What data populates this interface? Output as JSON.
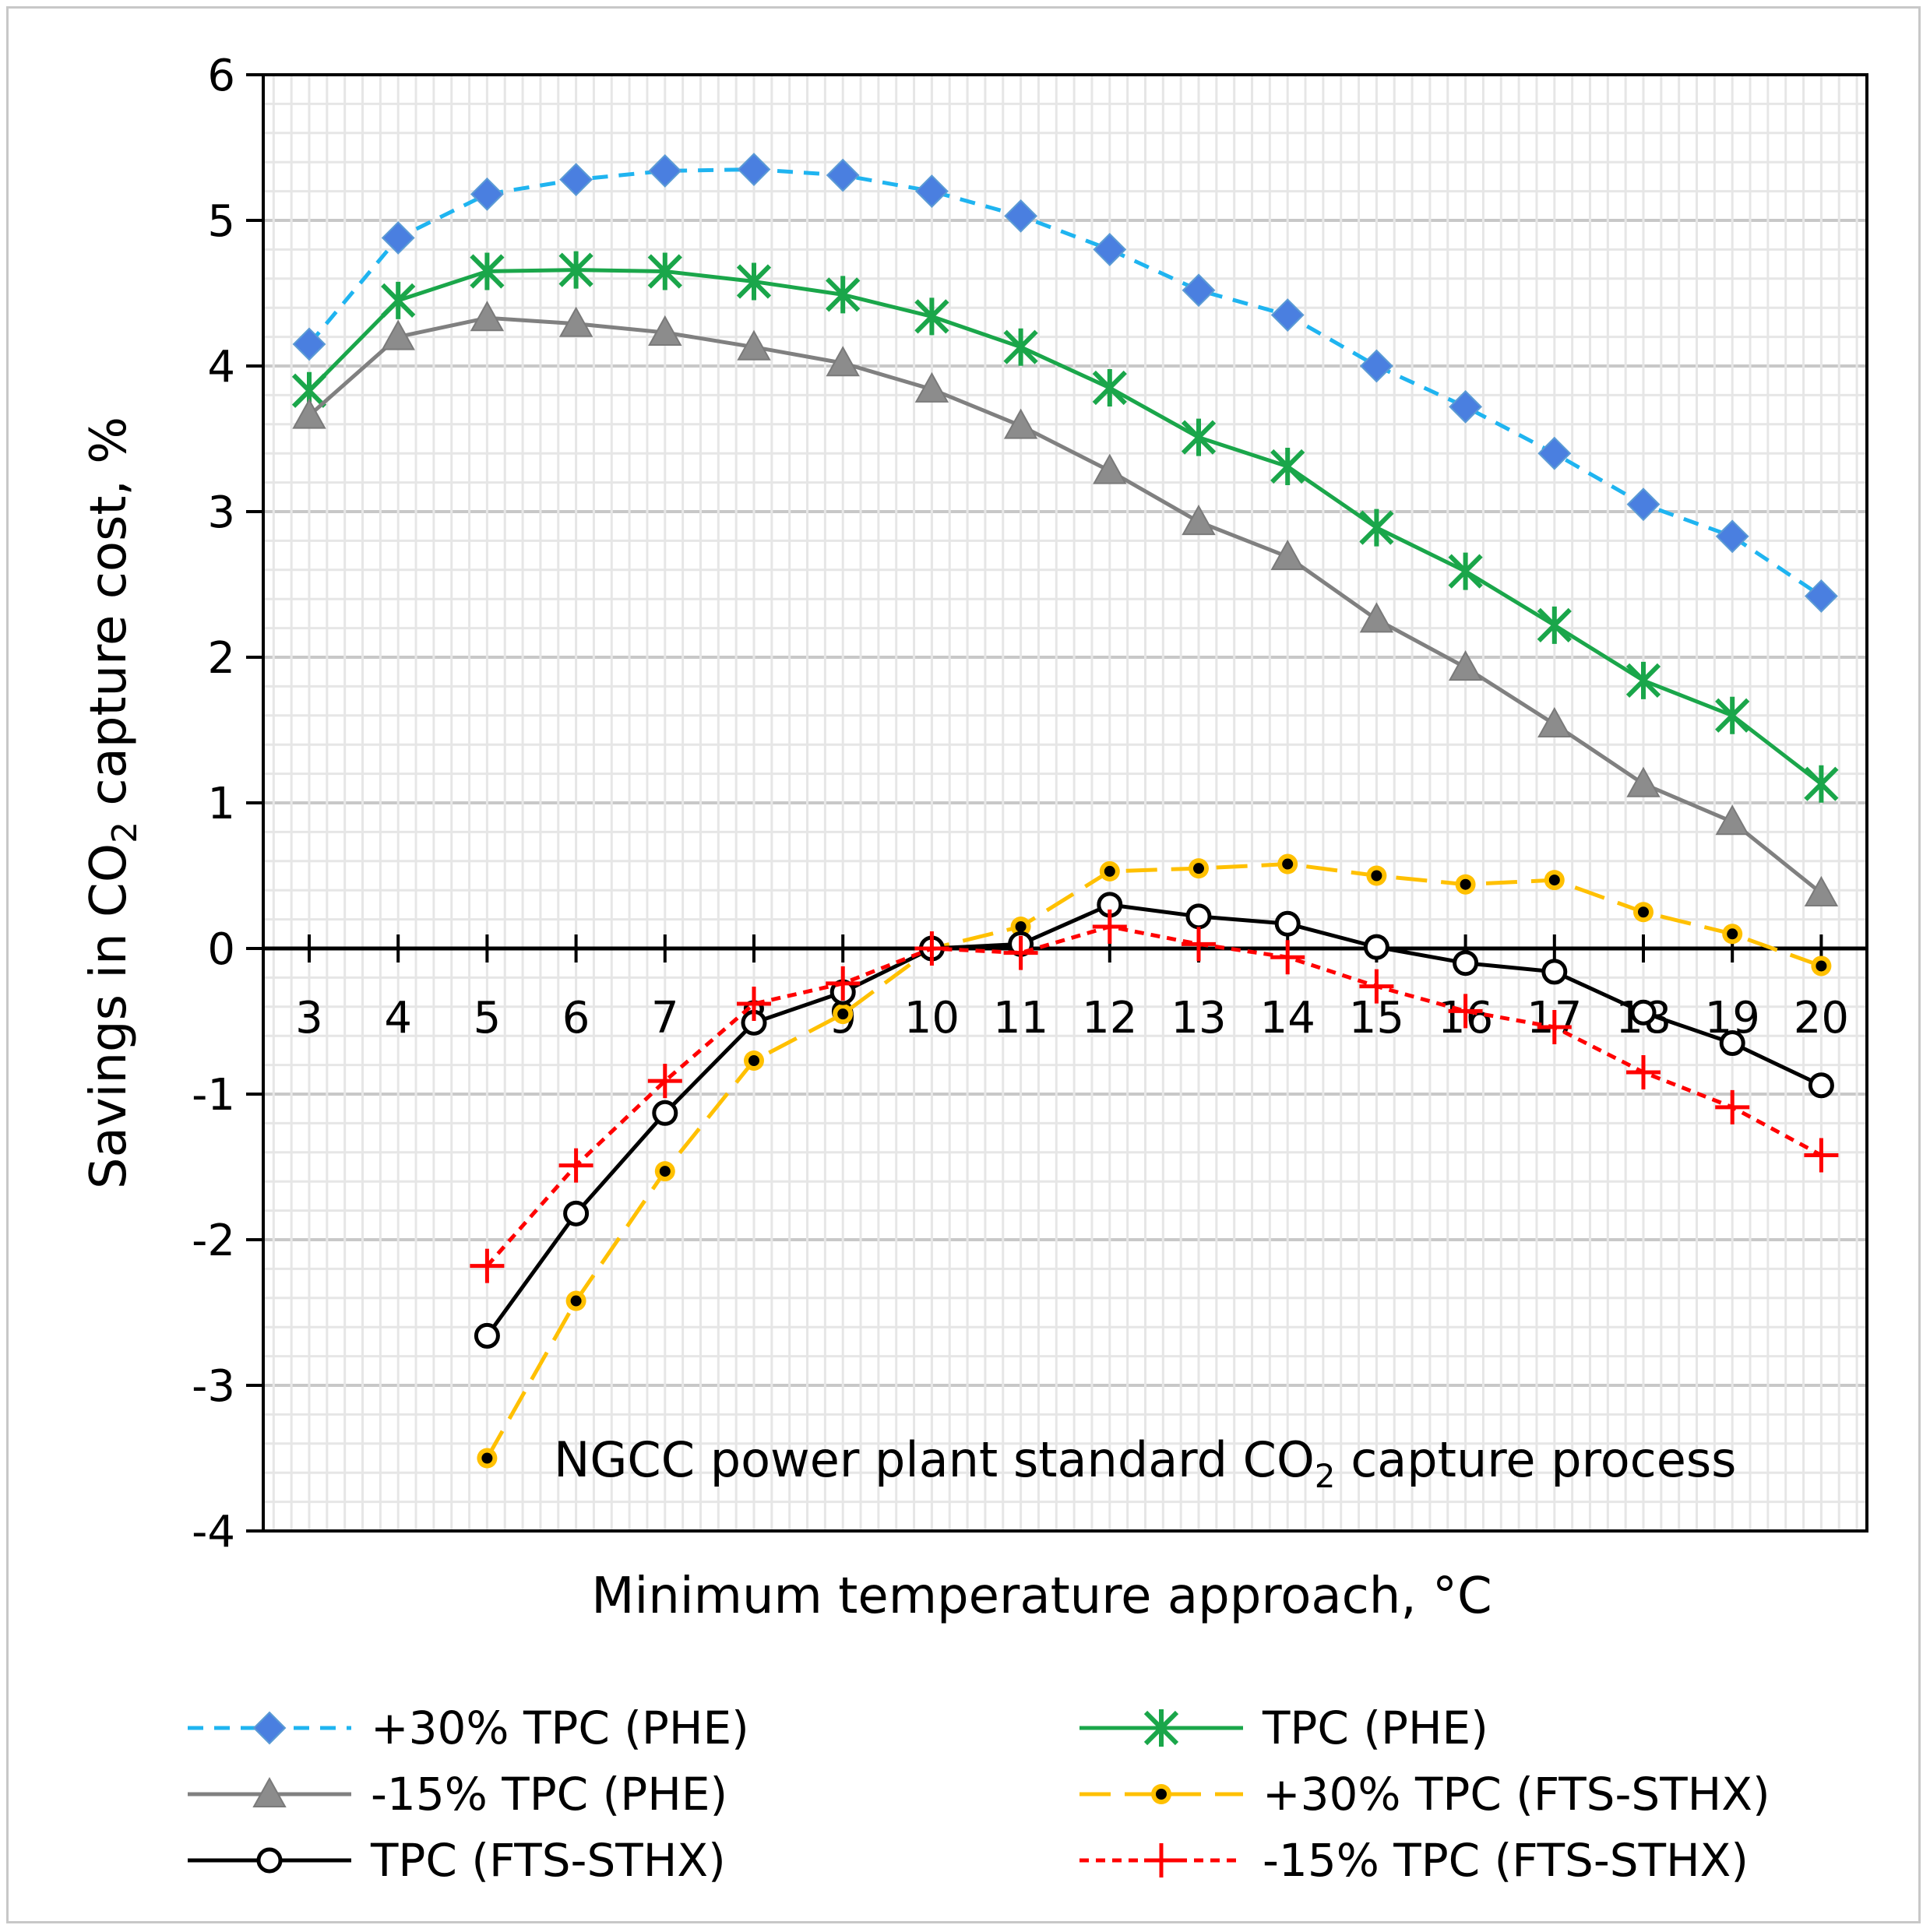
{
  "chart_data": {
    "type": "line",
    "title": "",
    "annotation": {
      "prefix": "NGCC power plant standard CO",
      "subscript": "2",
      "suffix": " capture process"
    },
    "xlabel": "Minimum temperature approach, °C",
    "ylabel": {
      "prefix": "Savings in CO",
      "subscript": "2",
      "suffix": " capture cost, %"
    },
    "ylim": [
      -4,
      6
    ],
    "yticks": [
      "-4",
      "-3",
      "-2",
      "-1",
      "0",
      "1",
      "2",
      "3",
      "4",
      "5",
      "6"
    ],
    "categories": [
      "3",
      "4",
      "5",
      "6",
      "7",
      "8",
      "9",
      "10",
      "11",
      "12",
      "13",
      "14",
      "15",
      "16",
      "17",
      "18",
      "19",
      "20"
    ],
    "grid": true,
    "legend_position": "bottom",
    "series": [
      {
        "name": "+30% TPC (PHE)",
        "color": "#1fb4f0",
        "marker_color": "#4a7fe0",
        "line": "dashed",
        "marker": "diamond",
        "x": [
          3,
          4,
          5,
          6,
          7,
          8,
          9,
          10,
          11,
          12,
          13,
          14,
          15,
          16,
          17,
          18,
          19,
          20
        ],
        "values": [
          4.15,
          4.88,
          5.18,
          5.28,
          5.34,
          5.35,
          5.31,
          5.2,
          5.03,
          4.8,
          4.52,
          4.35,
          4.0,
          3.72,
          3.4,
          3.05,
          2.83,
          2.42
        ]
      },
      {
        "name": "TPC (PHE)",
        "color": "#1aa64a",
        "marker_color": "#1aa64a",
        "line": "solid",
        "marker": "asterisk",
        "x": [
          3,
          4,
          5,
          6,
          7,
          8,
          9,
          10,
          11,
          12,
          13,
          14,
          15,
          16,
          17,
          18,
          19,
          20
        ],
        "values": [
          3.83,
          4.45,
          4.65,
          4.66,
          4.65,
          4.58,
          4.49,
          4.34,
          4.13,
          3.85,
          3.51,
          3.31,
          2.89,
          2.59,
          2.22,
          1.84,
          1.6,
          1.13
        ]
      },
      {
        "name": "-15% TPC (PHE)",
        "color": "#808080",
        "marker_color": "#8c8c8c",
        "line": "solid",
        "marker": "triangle",
        "x": [
          3,
          4,
          5,
          6,
          7,
          8,
          9,
          10,
          11,
          12,
          13,
          14,
          15,
          16,
          17,
          18,
          19,
          20
        ],
        "values": [
          3.66,
          4.2,
          4.33,
          4.29,
          4.23,
          4.13,
          4.02,
          3.84,
          3.59,
          3.28,
          2.93,
          2.69,
          2.26,
          1.93,
          1.54,
          1.13,
          0.87,
          0.38
        ]
      },
      {
        "name": "+30% TPC (FTS-STHX)",
        "color": "#ffc000",
        "marker_color": "#ffc000",
        "line": "longdash",
        "marker": "dot",
        "x": [
          5,
          6,
          7,
          8,
          9,
          10,
          11,
          12,
          13,
          14,
          15,
          16,
          17,
          18,
          19,
          20
        ],
        "values": [
          -3.5,
          -2.42,
          -1.53,
          -0.77,
          -0.45,
          0.0,
          0.15,
          0.53,
          0.55,
          0.58,
          0.5,
          0.44,
          0.47,
          0.25,
          0.1,
          -0.12
        ]
      },
      {
        "name": "TPC (FTS-STHX)",
        "color": "#000000",
        "marker_color": "#000000",
        "line": "solid",
        "marker": "circle",
        "x": [
          5,
          6,
          7,
          8,
          9,
          10,
          11,
          12,
          13,
          14,
          15,
          16,
          17,
          18,
          19,
          20
        ],
        "values": [
          -2.66,
          -1.82,
          -1.13,
          -0.51,
          -0.3,
          0.0,
          0.03,
          0.3,
          0.22,
          0.17,
          0.01,
          -0.1,
          -0.16,
          -0.44,
          -0.65,
          -0.94
        ]
      },
      {
        "name": "-15% TPC (FTS-STHX)",
        "color": "#ff0000",
        "marker_color": "#ff0000",
        "line": "shortdash",
        "marker": "plus",
        "x": [
          5,
          6,
          7,
          8,
          9,
          10,
          11,
          12,
          13,
          14,
          15,
          16,
          17,
          18,
          19,
          20
        ],
        "values": [
          -2.18,
          -1.49,
          -0.91,
          -0.38,
          -0.24,
          0.0,
          -0.03,
          0.15,
          0.03,
          -0.06,
          -0.26,
          -0.43,
          -0.54,
          -0.85,
          -1.09,
          -1.42
        ]
      }
    ]
  }
}
